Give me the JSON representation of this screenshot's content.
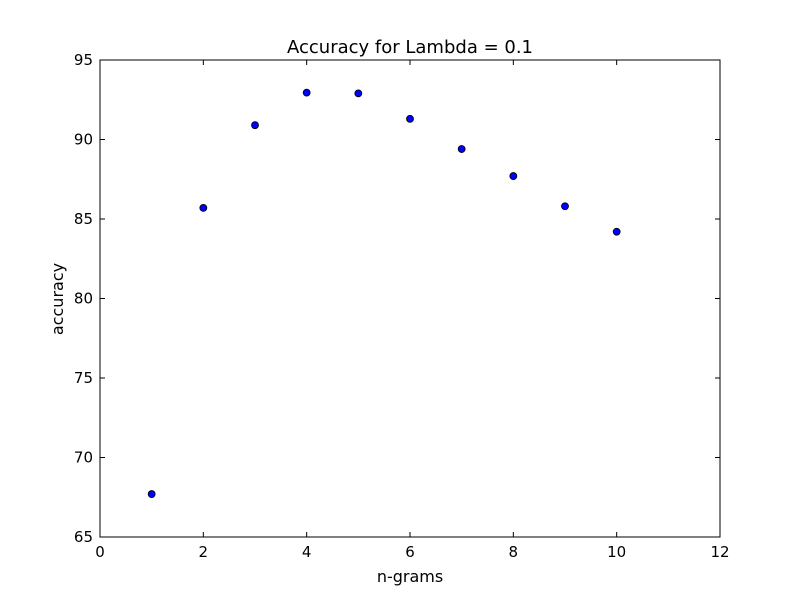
{
  "chart_data": {
    "type": "scatter",
    "title": "Accuracy for Lambda = 0.1",
    "xlabel": "n-grams",
    "ylabel": "accuracy",
    "xlim": [
      0,
      12
    ],
    "ylim": [
      65,
      95
    ],
    "x_ticks": [
      0,
      2,
      4,
      6,
      8,
      10,
      12
    ],
    "y_ticks": [
      65,
      70,
      75,
      80,
      85,
      90,
      95
    ],
    "grid": false,
    "legend": "none",
    "marker_color": "#0000ff",
    "marker_edge_color": "#000000",
    "series": [
      {
        "x": [
          1,
          2,
          3,
          4,
          5,
          6,
          7,
          8,
          9,
          10
        ],
        "y": [
          67.7,
          85.7,
          90.9,
          92.95,
          92.9,
          91.3,
          89.4,
          87.7,
          85.8,
          84.2
        ]
      }
    ]
  }
}
